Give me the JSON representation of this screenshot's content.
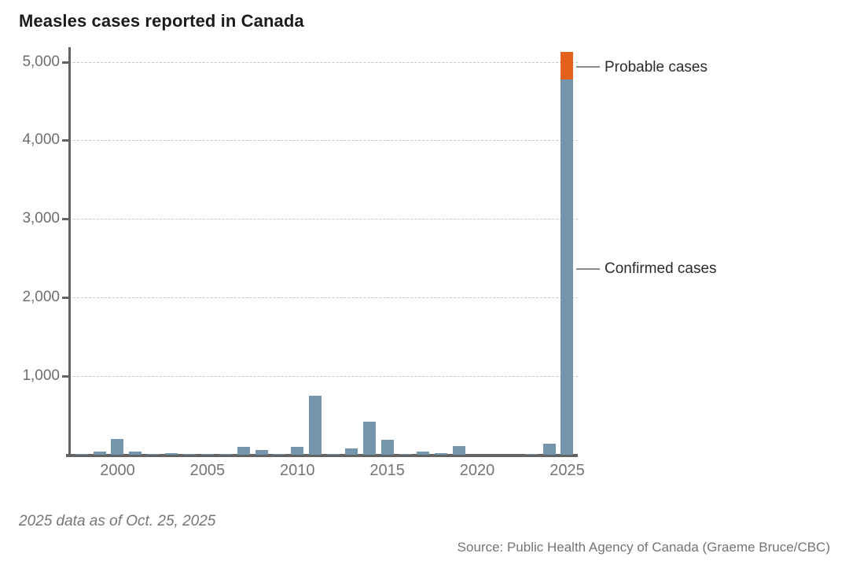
{
  "header": {
    "title": "Measles cases reported in Canada"
  },
  "annotations": {
    "probable": "Probable cases",
    "confirmed": "Confirmed cases"
  },
  "footer": {
    "note": "2025 data as of Oct. 25, 2025",
    "source": "Source: Public Health Agency of Canada (Graeme Bruce/CBC)"
  },
  "colors": {
    "confirmed_bar": "#7495ab",
    "probable_bar": "#e5621d",
    "axis": "#636363",
    "gridline": "#c7c7c7",
    "tick_label": "#6e6e6e",
    "title_text": "#1c1c1c",
    "annotation_text": "#2b2b2b",
    "footer_text": "#757575",
    "connector": "#8a8a8a"
  },
  "chart_data": {
    "type": "bar",
    "stacked": true,
    "title": "Measles cases reported in Canada",
    "xlabel": "",
    "ylabel": "",
    "x": [
      1998,
      1999,
      2000,
      2001,
      2002,
      2003,
      2004,
      2005,
      2006,
      2007,
      2008,
      2009,
      2010,
      2011,
      2012,
      2013,
      2014,
      2015,
      2016,
      2017,
      2018,
      2019,
      2020,
      2021,
      2022,
      2023,
      2024,
      2025
    ],
    "series": [
      {
        "name": "Confirmed cases",
        "color": "#7495ab",
        "values": [
          12,
          40,
          200,
          40,
          7,
          16,
          8,
          6,
          13,
          100,
          60,
          14,
          100,
          750,
          10,
          85,
          420,
          195,
          11,
          45,
          25,
          110,
          1,
          0,
          3,
          12,
          145,
          4770
        ]
      },
      {
        "name": "Probable cases",
        "color": "#e5621d",
        "values": [
          0,
          0,
          0,
          0,
          0,
          0,
          0,
          0,
          0,
          0,
          0,
          0,
          0,
          0,
          0,
          0,
          0,
          0,
          0,
          0,
          0,
          0,
          0,
          0,
          0,
          0,
          0,
          360
        ]
      }
    ],
    "ylim": [
      0,
      5150
    ],
    "yticks": [
      1000,
      2000,
      3000,
      4000,
      5000
    ],
    "ytick_labels": [
      "1,000",
      "2,000",
      "3,000",
      "4,000",
      "5,000"
    ],
    "xticks": [
      2000,
      2005,
      2010,
      2015,
      2020,
      2025
    ],
    "xtick_labels": [
      "2000",
      "2005",
      "2010",
      "2015",
      "2020",
      "2025"
    ],
    "grid": "horizontal-dashed",
    "legend_position": "inline-annotations",
    "note": "2025 data as of Oct. 25, 2025",
    "source": "Source: Public Health Agency of Canada (Graeme Bruce/CBC)"
  }
}
